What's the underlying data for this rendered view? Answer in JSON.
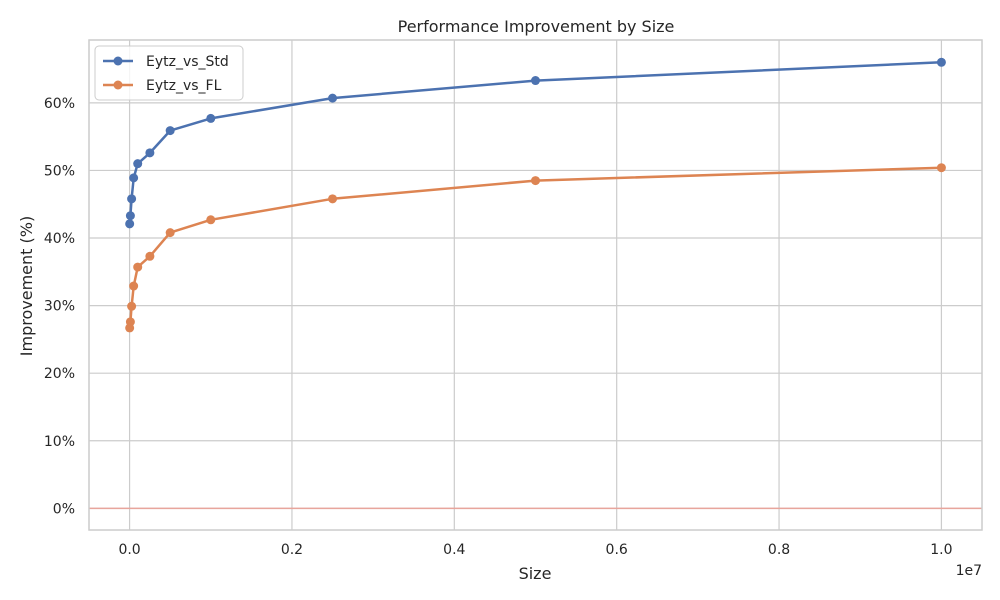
{
  "chart_data": {
    "type": "line",
    "title": "Performance Improvement by Size",
    "xlabel": "Size",
    "ylabel": "Improvement (%)",
    "x_offset_label": "1e7",
    "xlim": [
      -500000,
      10500000
    ],
    "ylim": [
      -3.2,
      69.3
    ],
    "x_ticks": [
      0,
      2000000,
      4000000,
      6000000,
      8000000,
      10000000
    ],
    "x_tick_labels": [
      "0.0",
      "0.2",
      "0.4",
      "0.6",
      "0.8",
      "1.0"
    ],
    "y_ticks": [
      0,
      10,
      20,
      30,
      40,
      50,
      60
    ],
    "y_tick_labels": [
      "0%",
      "10%",
      "20%",
      "30%",
      "40%",
      "50%",
      "60%"
    ],
    "grid": true,
    "legend_position": "top-left",
    "reference_line": {
      "y": 0,
      "color": "#e8a59c"
    },
    "x": [
      1000,
      10000,
      25000,
      50000,
      100000,
      250000,
      500000,
      1000000,
      2500000,
      5000000,
      10000000
    ],
    "series": [
      {
        "name": "Eytz_vs_Std",
        "color": "#4c72b0",
        "values": [
          42.1,
          43.3,
          45.8,
          48.9,
          51.0,
          52.6,
          55.9,
          57.7,
          60.7,
          63.3,
          66.0
        ]
      },
      {
        "name": "Eytz_vs_FL",
        "color": "#dd8452",
        "values": [
          26.7,
          27.6,
          29.9,
          32.9,
          35.7,
          37.3,
          40.8,
          42.7,
          45.8,
          48.5,
          50.4
        ]
      }
    ]
  }
}
